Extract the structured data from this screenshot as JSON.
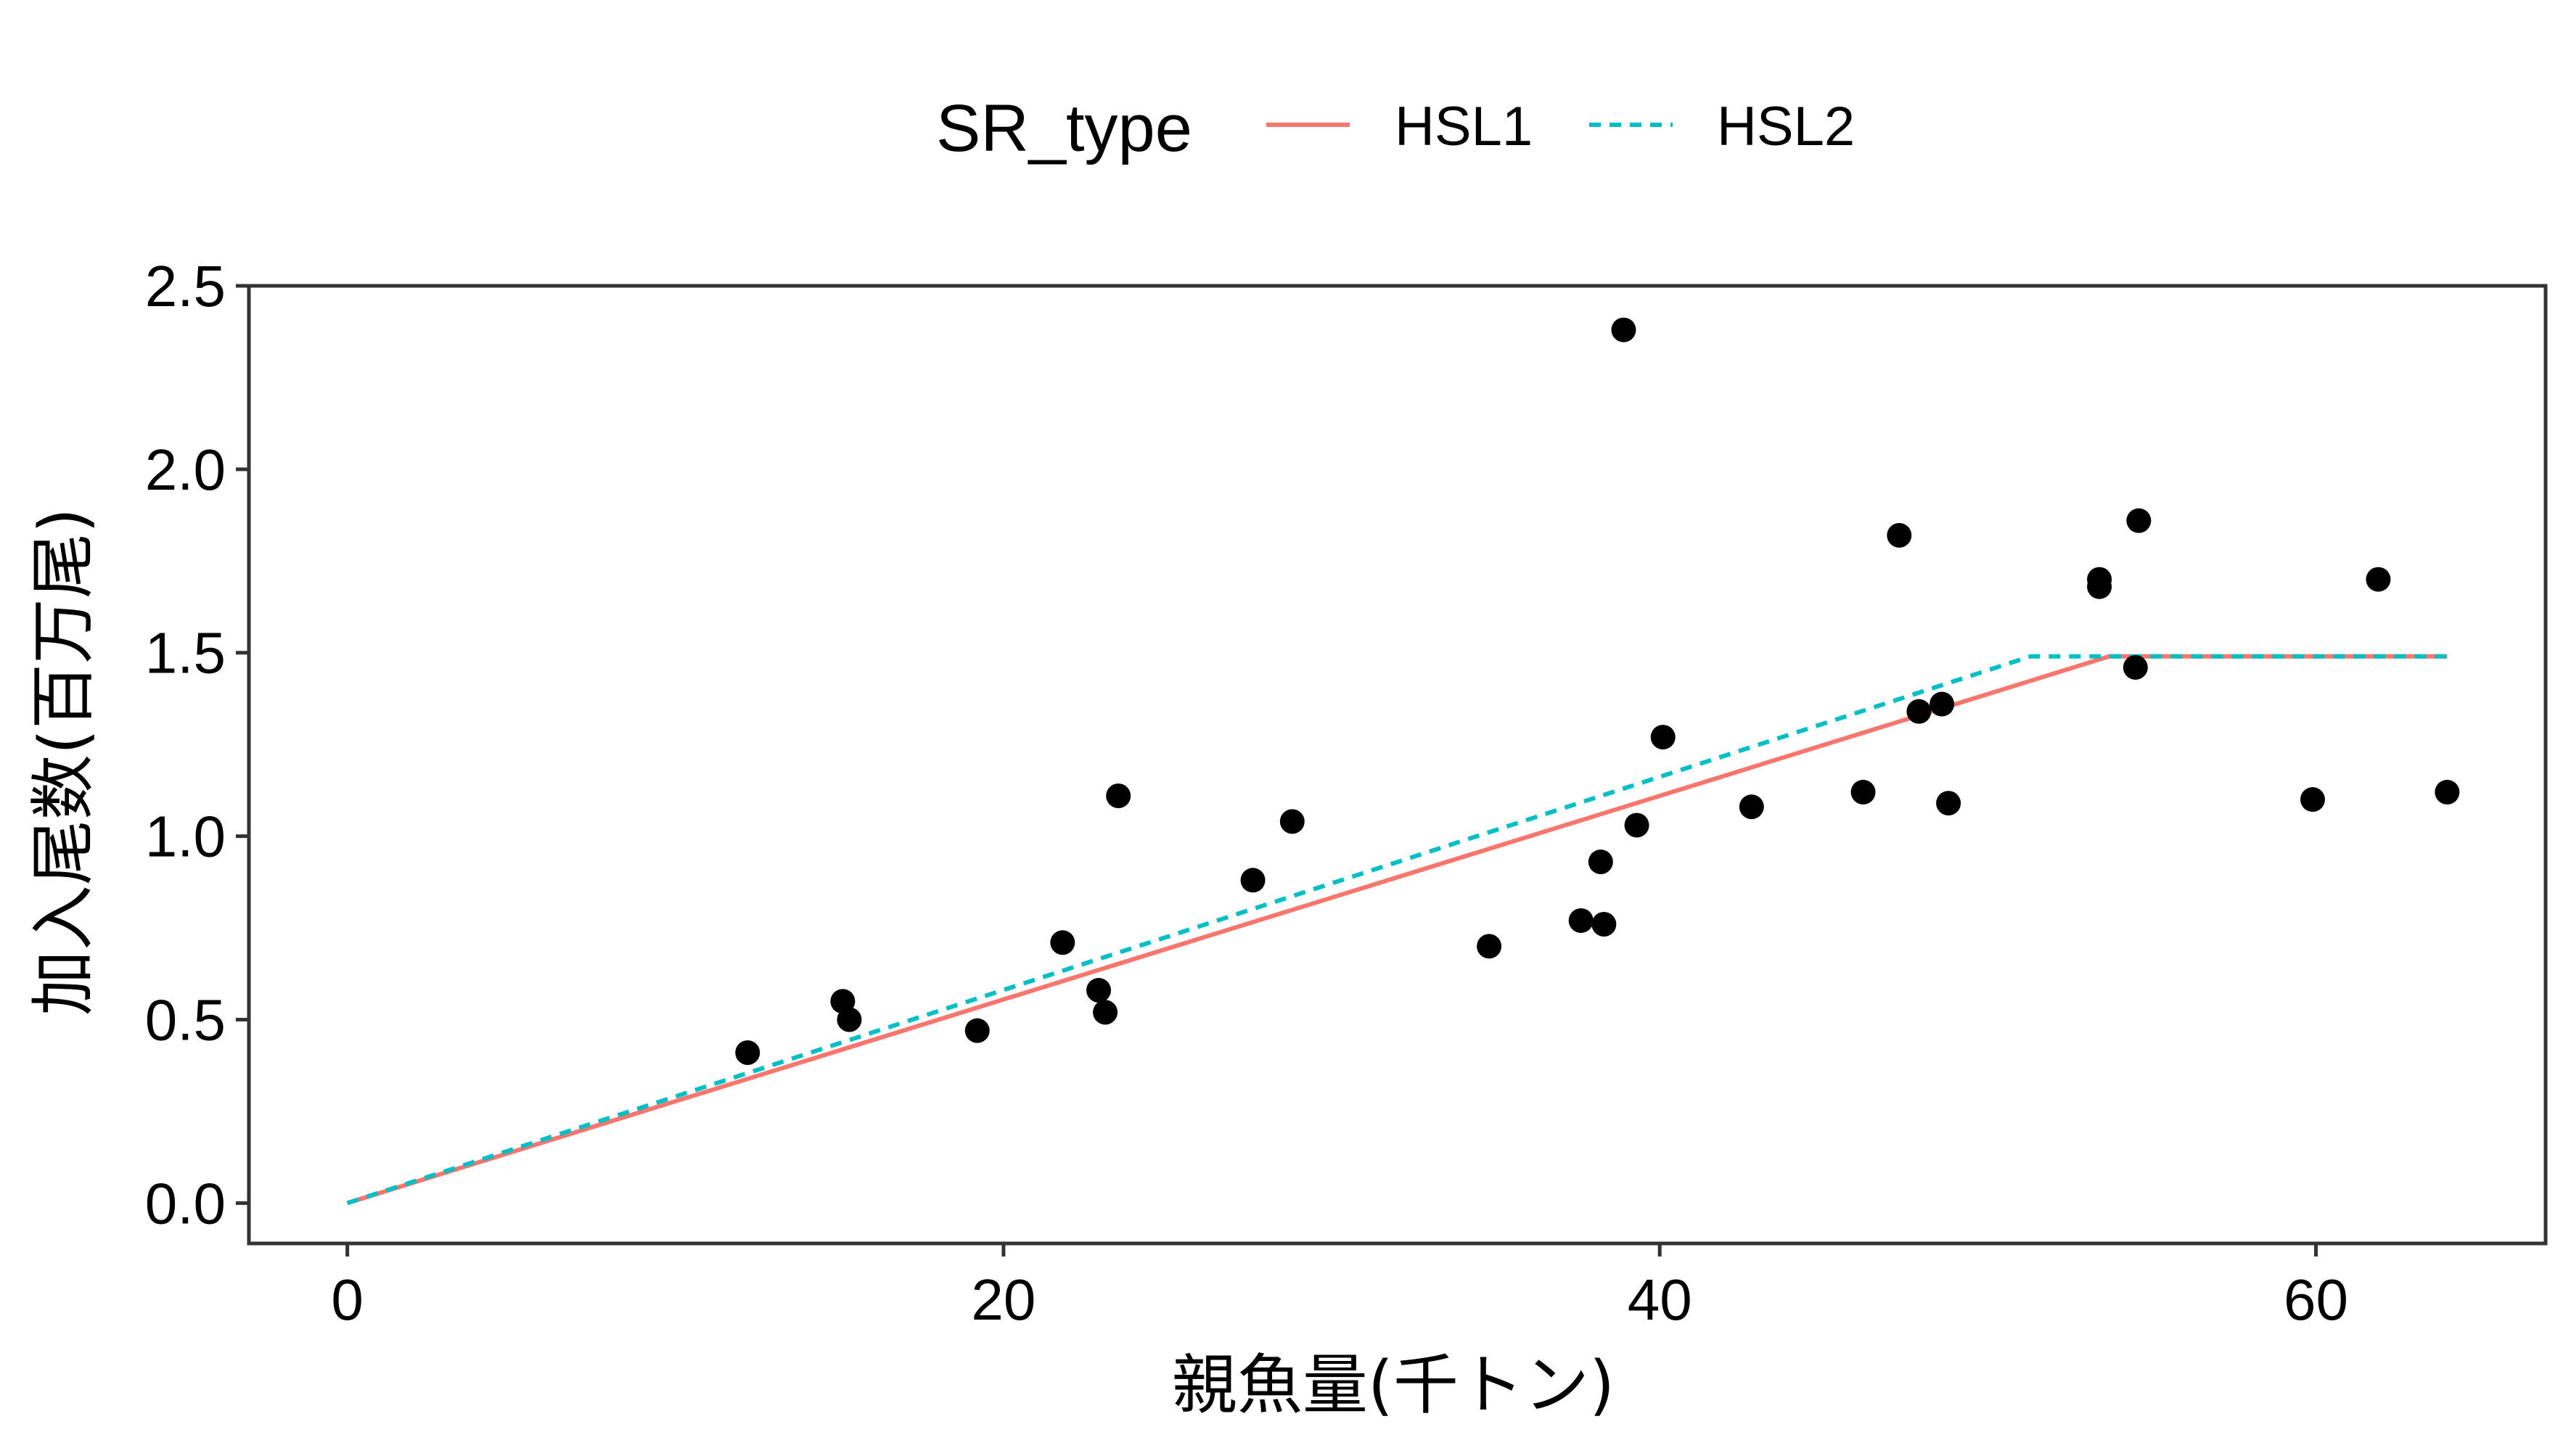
{
  "chart_data": {
    "type": "scatter",
    "title": "",
    "xlabel": "親魚量(千トン)",
    "ylabel": "加入尾数(百万尾)",
    "xlim": [
      -3,
      67
    ],
    "ylim": [
      -0.11,
      2.5
    ],
    "xticks": [
      0,
      20,
      40,
      60
    ],
    "yticks": [
      0.0,
      0.5,
      1.0,
      1.5,
      2.0,
      2.5
    ],
    "xtick_labels": [
      "0",
      "20",
      "40",
      "60"
    ],
    "ytick_labels": [
      "0.0",
      "0.5",
      "1.0",
      "1.5",
      "2.0",
      "2.5"
    ],
    "grid": false,
    "legend": {
      "title": "SR_type",
      "placement": "top",
      "entries": [
        {
          "label": "HSL1",
          "color": "#F8766D",
          "dash": "solid"
        },
        {
          "label": "HSL2",
          "color": "#00BFC4",
          "dash": "dashed"
        }
      ]
    },
    "points": {
      "color": "#000000",
      "x": [
        12.2,
        15.1,
        15.3,
        19.2,
        21.8,
        22.9,
        23.1,
        23.5,
        27.6,
        28.8,
        34.8,
        37.6,
        38.2,
        38.3,
        38.9,
        39.3,
        40.1,
        42.8,
        46.2,
        47.3,
        47.9,
        48.6,
        48.8,
        53.4,
        53.4,
        54.5,
        54.6,
        59.9,
        61.9,
        64.0
      ],
      "y": [
        0.41,
        0.55,
        0.5,
        0.47,
        0.71,
        0.58,
        0.52,
        1.11,
        0.88,
        1.04,
        0.7,
        0.77,
        0.93,
        0.76,
        2.38,
        1.03,
        1.27,
        1.08,
        1.12,
        1.82,
        1.34,
        1.36,
        1.09,
        1.7,
        1.68,
        1.46,
        1.86,
        1.1,
        1.7,
        1.12
      ]
    },
    "series": [
      {
        "name": "HSL1",
        "color": "#F8766D",
        "dash": "solid",
        "x": [
          0,
          53.7,
          64.0
        ],
        "y": [
          0,
          1.49,
          1.49
        ]
      },
      {
        "name": "HSL2",
        "color": "#00BFC4",
        "dash": "dashed",
        "x": [
          0,
          51.3,
          64.0
        ],
        "y": [
          0,
          1.49,
          1.49
        ]
      }
    ]
  }
}
